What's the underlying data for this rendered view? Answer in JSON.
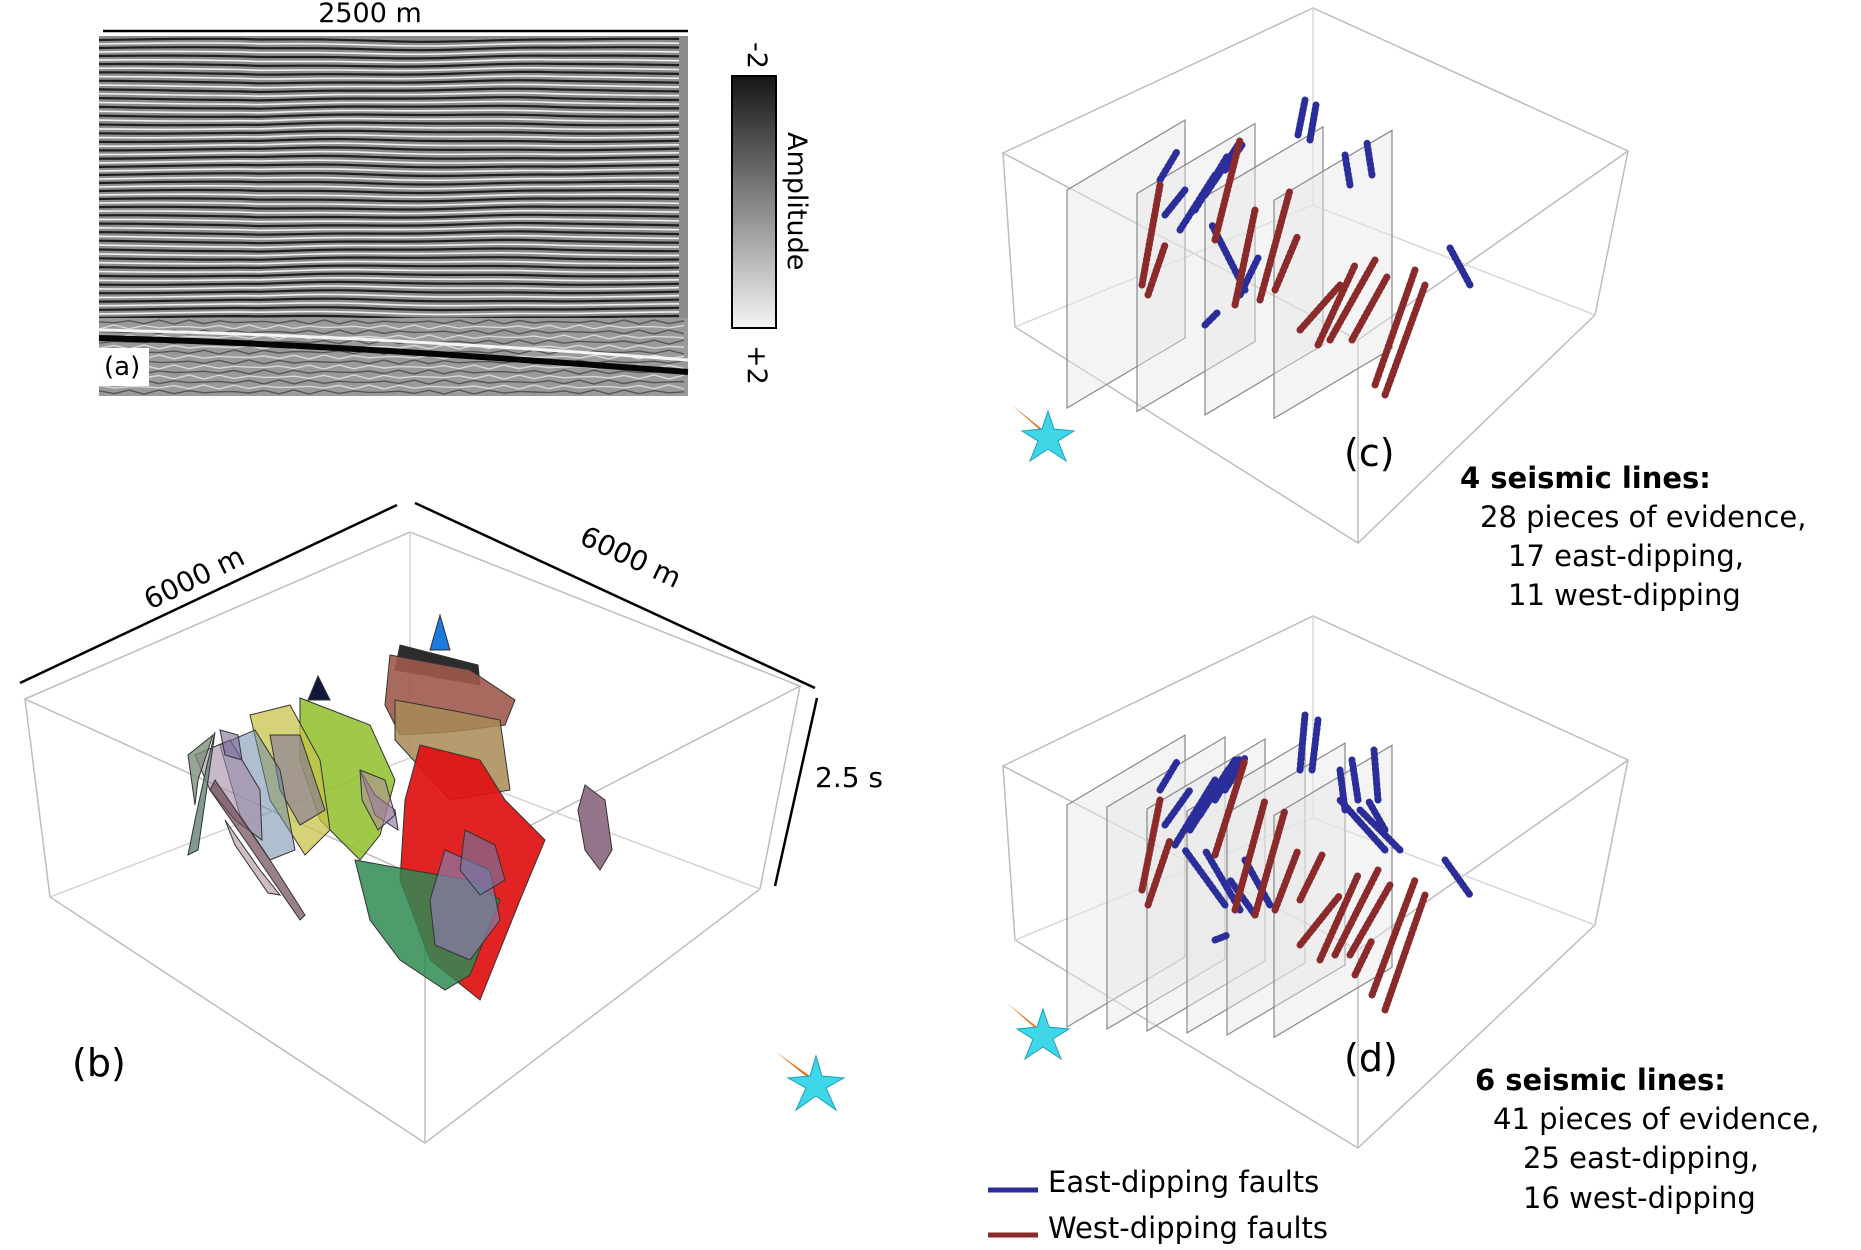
{
  "panel_a": {
    "scale_label": "2500 m",
    "panel_label": "(a)",
    "colorbar": {
      "top_label": "-2",
      "bottom_label": "+2",
      "title": "Amplitude"
    }
  },
  "panel_b": {
    "panel_label": "(b)",
    "dim_left": "6000 m",
    "dim_right": "6000 m",
    "dim_depth": "2.5 s"
  },
  "panel_c": {
    "panel_label": "(c)",
    "heading": "4 seismic lines:",
    "line1": "28 pieces of evidence,",
    "line2": "17 east-dipping,",
    "line3": "11 west-dipping"
  },
  "panel_d": {
    "panel_label": "(d)",
    "heading": "6 seismic lines:",
    "line1": "41 pieces of evidence,",
    "line2": "25 east-dipping,",
    "line3": "16 west-dipping"
  },
  "legend": {
    "items": [
      {
        "label": "East-dipping faults",
        "color": "#2b2e9a"
      },
      {
        "label": "West-dipping faults",
        "color": "#8b2a2a"
      }
    ]
  },
  "colors": {
    "east": "#2b2e9a",
    "west": "#8b2a2a",
    "compass_cyan": "#3fd6e8",
    "compass_orange": "#e8741a"
  }
}
